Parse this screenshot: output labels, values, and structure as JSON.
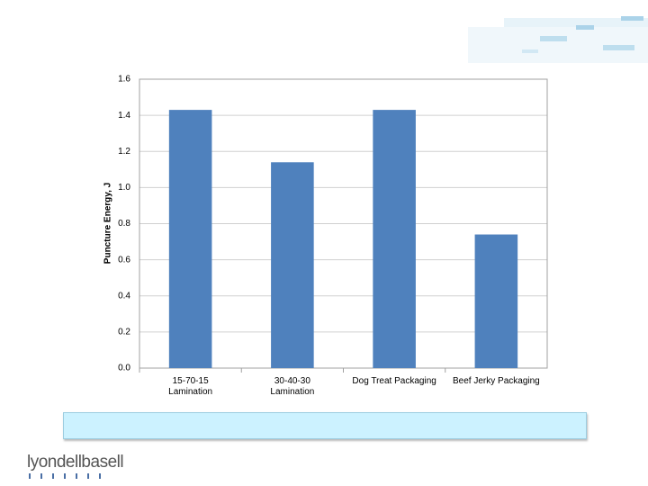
{
  "brand": "lyondellbasell",
  "chart_data": {
    "type": "bar",
    "y_label": "Puncture Energy, J",
    "categories": [
      "15-70-15\nLamination",
      "30-40-30\nLamination",
      "Dog Treat Packaging",
      "Beef Jerky Packaging"
    ],
    "values": [
      1.43,
      1.14,
      1.43,
      0.74
    ],
    "color": "#4f81bd",
    "ylim": [
      0,
      1.6
    ],
    "yticks": [
      {
        "value": 0,
        "label": "0.0"
      },
      0.2,
      0.4,
      0.6,
      0.8,
      {
        "value": 1,
        "label": "1.0"
      },
      1.2,
      1.4,
      1.6
    ],
    "grid": true
  }
}
